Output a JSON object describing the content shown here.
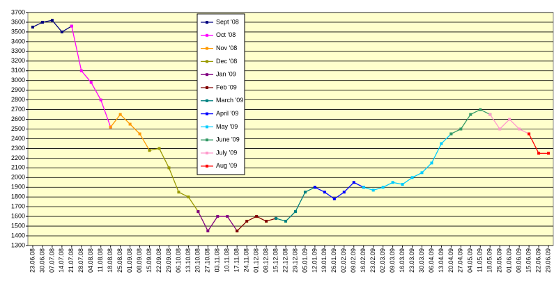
{
  "chart_data": {
    "type": "line",
    "categories": [
      "23.06.08",
      "30.06.08",
      "07.07.08",
      "14.07.08",
      "21.07.08",
      "28.07.08",
      "04.08.08",
      "11.08.08",
      "18.08.08",
      "25.08.08",
      "01.09.08",
      "08.09.08",
      "15.09.08",
      "22.09.08",
      "29.09.08",
      "06.10.08",
      "13.10.08",
      "20.10.08",
      "27.10.08",
      "03.11.08",
      "10.11.08",
      "17.11.08",
      "24.11.08",
      "01.12.08",
      "08.12.08",
      "15.12.08",
      "22.12.08",
      "29.12.08",
      "05.01.09",
      "12.01.09",
      "19.01.09",
      "26.01.09",
      "02.02.09",
      "09.02.09",
      "16.02.09",
      "23.02.09",
      "02.03.09",
      "09.03.09",
      "16.03.09",
      "23.03.09",
      "30.03.09",
      "06.04.09",
      "13.04.09",
      "20.04.09",
      "27.04.09",
      "04.05.09",
      "11.05.09",
      "18.05.09",
      "25.05.09",
      "01.06.09",
      "08.06.09",
      "15.06.09",
      "22.06.09",
      "29.06.09"
    ],
    "series": [
      {
        "name": "Sept '08",
        "color": "#000080",
        "values": [
          3550,
          3600,
          3620,
          3500,
          3560,
          null,
          null,
          null,
          null,
          null,
          null,
          null,
          null,
          null,
          null,
          null,
          null,
          null,
          null,
          null,
          null,
          null,
          null,
          null,
          null,
          null,
          null,
          null,
          null,
          null,
          null,
          null,
          null,
          null,
          null,
          null,
          null,
          null,
          null,
          null,
          null,
          null,
          null,
          null,
          null,
          null,
          null,
          null,
          null,
          null,
          null,
          null,
          null,
          null
        ]
      },
      {
        "name": "Oct '08",
        "color": "#ff00ff",
        "values": [
          null,
          null,
          null,
          null,
          3560,
          3100,
          2980,
          2800,
          2520,
          null,
          null,
          null,
          null,
          null,
          null,
          null,
          null,
          null,
          null,
          null,
          null,
          null,
          null,
          null,
          null,
          null,
          null,
          null,
          null,
          null,
          null,
          null,
          null,
          null,
          null,
          null,
          null,
          null,
          null,
          null,
          null,
          null,
          null,
          null,
          null,
          null,
          null,
          null,
          null,
          null,
          null,
          null,
          null,
          null
        ]
      },
      {
        "name": "Nov '08",
        "color": "#ff9900",
        "values": [
          null,
          null,
          null,
          null,
          null,
          null,
          null,
          null,
          2520,
          2650,
          2550,
          2450,
          2280,
          null,
          null,
          null,
          null,
          null,
          null,
          null,
          null,
          null,
          null,
          null,
          null,
          null,
          null,
          null,
          null,
          null,
          null,
          null,
          null,
          null,
          null,
          null,
          null,
          null,
          null,
          null,
          null,
          null,
          null,
          null,
          null,
          null,
          null,
          null,
          null,
          null,
          null,
          null,
          null,
          null
        ]
      },
      {
        "name": "Dec '08",
        "color": "#999900",
        "values": [
          null,
          null,
          null,
          null,
          null,
          null,
          null,
          null,
          null,
          null,
          null,
          null,
          2280,
          2300,
          2100,
          1850,
          1800,
          1650,
          null,
          null,
          null,
          null,
          null,
          null,
          null,
          null,
          null,
          null,
          null,
          null,
          null,
          null,
          null,
          null,
          null,
          null,
          null,
          null,
          null,
          null,
          null,
          null,
          null,
          null,
          null,
          null,
          null,
          null,
          null,
          null,
          null,
          null,
          null,
          null
        ]
      },
      {
        "name": "Jan '09",
        "color": "#800080",
        "values": [
          null,
          null,
          null,
          null,
          null,
          null,
          null,
          null,
          null,
          null,
          null,
          null,
          null,
          null,
          null,
          null,
          null,
          1650,
          1450,
          1600,
          1600,
          1450,
          null,
          null,
          null,
          null,
          null,
          null,
          null,
          null,
          null,
          null,
          null,
          null,
          null,
          null,
          null,
          null,
          null,
          null,
          null,
          null,
          null,
          null,
          null,
          null,
          null,
          null,
          null,
          null,
          null,
          null,
          null,
          null
        ]
      },
      {
        "name": "Feb '09",
        "color": "#800000",
        "values": [
          null,
          null,
          null,
          null,
          null,
          null,
          null,
          null,
          null,
          null,
          null,
          null,
          null,
          null,
          null,
          null,
          null,
          null,
          null,
          null,
          null,
          1450,
          1550,
          1600,
          1550,
          1580,
          null,
          null,
          null,
          null,
          null,
          null,
          null,
          null,
          null,
          null,
          null,
          null,
          null,
          null,
          null,
          null,
          null,
          null,
          null,
          null,
          null,
          null,
          null,
          null,
          null,
          null,
          null,
          null
        ]
      },
      {
        "name": "March '09",
        "color": "#008080",
        "values": [
          null,
          null,
          null,
          null,
          null,
          null,
          null,
          null,
          null,
          null,
          null,
          null,
          null,
          null,
          null,
          null,
          null,
          null,
          null,
          null,
          null,
          null,
          null,
          null,
          null,
          1580,
          1550,
          1650,
          1850,
          1900,
          null,
          null,
          null,
          null,
          null,
          null,
          null,
          null,
          null,
          null,
          null,
          null,
          null,
          null,
          null,
          null,
          null,
          null,
          null,
          null,
          null,
          null,
          null,
          null
        ]
      },
      {
        "name": "April '09",
        "color": "#0000ff",
        "values": [
          null,
          null,
          null,
          null,
          null,
          null,
          null,
          null,
          null,
          null,
          null,
          null,
          null,
          null,
          null,
          null,
          null,
          null,
          null,
          null,
          null,
          null,
          null,
          null,
          null,
          null,
          null,
          null,
          null,
          1900,
          1850,
          1780,
          1850,
          1950,
          1900,
          null,
          null,
          null,
          null,
          null,
          null,
          null,
          null,
          null,
          null,
          null,
          null,
          null,
          null,
          null,
          null,
          null,
          null,
          null
        ]
      },
      {
        "name": "May '09",
        "color": "#00ccff",
        "values": [
          null,
          null,
          null,
          null,
          null,
          null,
          null,
          null,
          null,
          null,
          null,
          null,
          null,
          null,
          null,
          null,
          null,
          null,
          null,
          null,
          null,
          null,
          null,
          null,
          null,
          null,
          null,
          null,
          null,
          null,
          null,
          null,
          null,
          null,
          1900,
          1870,
          1900,
          1950,
          1930,
          2000,
          2050,
          2150,
          2350,
          2450,
          null,
          null,
          null,
          null,
          null,
          null,
          null,
          null,
          null,
          null
        ]
      },
      {
        "name": "June '09",
        "color": "#339966",
        "values": [
          null,
          null,
          null,
          null,
          null,
          null,
          null,
          null,
          null,
          null,
          null,
          null,
          null,
          null,
          null,
          null,
          null,
          null,
          null,
          null,
          null,
          null,
          null,
          null,
          null,
          null,
          null,
          null,
          null,
          null,
          null,
          null,
          null,
          null,
          null,
          null,
          null,
          null,
          null,
          null,
          null,
          null,
          null,
          2450,
          2500,
          2650,
          2700,
          2650,
          null,
          null,
          null,
          null,
          null,
          null
        ]
      },
      {
        "name": "July '09",
        "color": "#ff99cc",
        "values": [
          null,
          null,
          null,
          null,
          null,
          null,
          null,
          null,
          null,
          null,
          null,
          null,
          null,
          null,
          null,
          null,
          null,
          null,
          null,
          null,
          null,
          null,
          null,
          null,
          null,
          null,
          null,
          null,
          null,
          null,
          null,
          null,
          null,
          null,
          null,
          null,
          null,
          null,
          null,
          null,
          null,
          null,
          null,
          null,
          null,
          null,
          null,
          2650,
          2500,
          2600,
          2500,
          2450,
          null,
          null
        ]
      },
      {
        "name": "Aug '09",
        "color": "#ff0000",
        "values": [
          null,
          null,
          null,
          null,
          null,
          null,
          null,
          null,
          null,
          null,
          null,
          null,
          null,
          null,
          null,
          null,
          null,
          null,
          null,
          null,
          null,
          null,
          null,
          null,
          null,
          null,
          null,
          null,
          null,
          null,
          null,
          null,
          null,
          null,
          null,
          null,
          null,
          null,
          null,
          null,
          null,
          null,
          null,
          null,
          null,
          null,
          null,
          null,
          null,
          null,
          null,
          2450,
          2250,
          2250
        ]
      }
    ],
    "ylim": [
      1300,
      3700
    ],
    "yticks": [
      1300,
      1400,
      1500,
      1600,
      1700,
      1800,
      1900,
      2000,
      2100,
      2200,
      2300,
      2400,
      2500,
      2600,
      2700,
      2800,
      2900,
      3000,
      3100,
      3200,
      3300,
      3400,
      3500,
      3600,
      3700
    ],
    "grid": true
  }
}
